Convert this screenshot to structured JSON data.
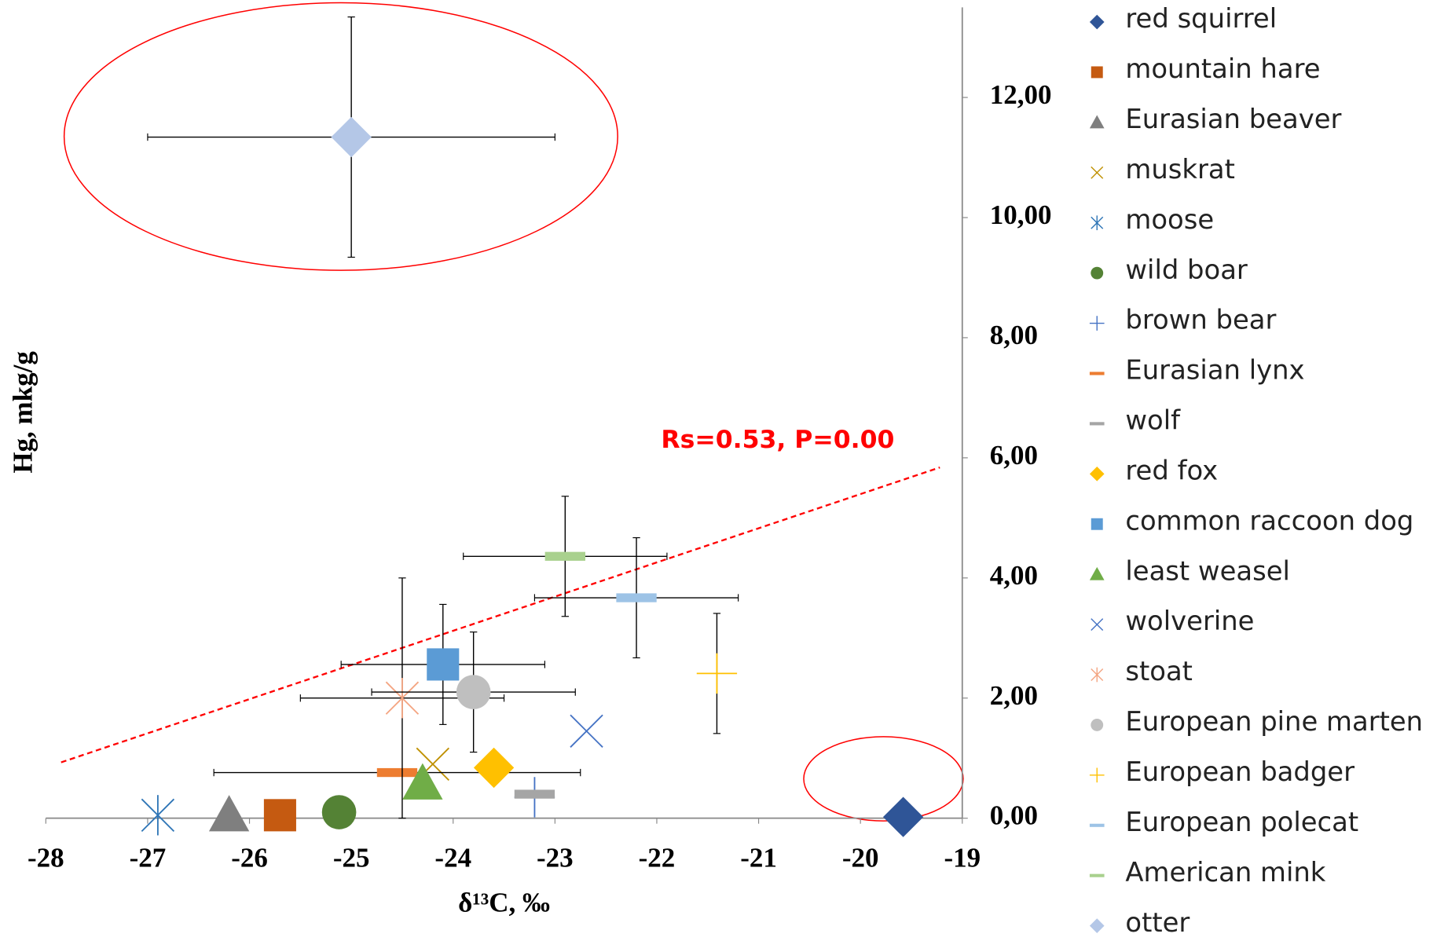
{
  "chart_data": {
    "type": "scatter",
    "xlabel": "δ¹³C, ‰",
    "ylabel": "Hg, mkg/g",
    "annotation": "Rs=0.53, P=0.00",
    "xlim": [
      -28,
      -19
    ],
    "ylim": [
      0,
      13.5
    ],
    "xticks": [
      -28,
      -27,
      -26,
      -25,
      -24,
      -23,
      -22,
      -21,
      -20,
      -19
    ],
    "yticks": [
      {
        "value": 0,
        "label": "0,00"
      },
      {
        "value": 2,
        "label": "2,00"
      },
      {
        "value": 4,
        "label": "4,00"
      },
      {
        "value": 6,
        "label": "6,00"
      },
      {
        "value": 8,
        "label": "8,00"
      },
      {
        "value": 10,
        "label": "10,00"
      },
      {
        "value": 12,
        "label": "12,00"
      }
    ],
    "trendline": {
      "color": "#ff0000",
      "x": [
        -27.85,
        -19.22
      ],
      "y": [
        0.93,
        5.84
      ]
    },
    "series": [
      {
        "name": "red squirrel",
        "color": "#2f5597",
        "marker": "diamond",
        "x": [
          -19.58
        ],
        "y": [
          0.02
        ]
      },
      {
        "name": "mountain hare",
        "color": "#c55a11",
        "marker": "square",
        "x": [
          -25.7
        ],
        "y": [
          0.05
        ]
      },
      {
        "name": "Eurasian beaver",
        "color": "#7f7f7f",
        "marker": "triangle",
        "x": [
          -26.2
        ],
        "y": [
          0.05
        ]
      },
      {
        "name": "muskrat",
        "color": "#bf9000",
        "marker": "x",
        "x": [
          -24.2
        ],
        "y": [
          0.9
        ]
      },
      {
        "name": "moose",
        "color": "#2e75b6",
        "marker": "star",
        "x": [
          -26.9
        ],
        "y": [
          0.05
        ]
      },
      {
        "name": "wild boar",
        "color": "#548235",
        "marker": "circle",
        "x": [
          -25.12
        ],
        "y": [
          0.1
        ]
      },
      {
        "name": "brown bear",
        "color": "#4472c4",
        "marker": "plus",
        "x": [
          -23.2
        ],
        "y": [
          0.35
        ]
      },
      {
        "name": "Eurasian lynx",
        "color": "#ed7d31",
        "marker": "dash",
        "x": [
          -24.55
        ],
        "y": [
          0.76
        ],
        "xerr": [
          1.8
        ]
      },
      {
        "name": "wolf",
        "color": "#a5a5a5",
        "marker": "dash",
        "x": [
          -23.2
        ],
        "y": [
          0.4
        ]
      },
      {
        "name": "red fox",
        "color": "#ffc000",
        "marker": "diamond",
        "x": [
          -23.6
        ],
        "y": [
          0.84
        ]
      },
      {
        "name": "common raccoon dog",
        "color": "#5b9bd5",
        "marker": "square",
        "x": [
          -24.1
        ],
        "y": [
          2.56
        ],
        "xerr": [
          1
        ],
        "yerr": [
          1
        ]
      },
      {
        "name": "least weasel",
        "color": "#70ad47",
        "marker": "triangle",
        "x": [
          -24.3
        ],
        "y": [
          0.58
        ]
      },
      {
        "name": "wolverine",
        "color": "#4472c4",
        "marker": "x",
        "x": [
          -22.69
        ],
        "y": [
          1.45
        ]
      },
      {
        "name": "stoat",
        "color": "#f4a582",
        "marker": "star",
        "x": [
          -24.5
        ],
        "y": [
          2.0
        ],
        "xerr": [
          1
        ],
        "yerr": [
          2
        ]
      },
      {
        "name": "European pine marten",
        "color": "#bfbfbf",
        "marker": "circle",
        "x": [
          -23.8
        ],
        "y": [
          2.1
        ],
        "xerr": [
          1
        ],
        "yerr": [
          1
        ]
      },
      {
        "name": "European badger",
        "color": "#ffc000",
        "marker": "plus",
        "x": [
          -21.41
        ],
        "y": [
          2.41
        ],
        "yerr": [
          1
        ]
      },
      {
        "name": "European polecat",
        "color": "#9dc3e6",
        "marker": "dash",
        "x": [
          -22.2
        ],
        "y": [
          3.67
        ],
        "xerr": [
          1
        ],
        "yerr": [
          1
        ]
      },
      {
        "name": "American mink",
        "color": "#a9d18e",
        "marker": "dash",
        "x": [
          -22.9
        ],
        "y": [
          4.36
        ],
        "xerr": [
          1
        ],
        "yerr": [
          1
        ]
      },
      {
        "name": "otter",
        "color": "#b4c7e7",
        "marker": "diamond",
        "x": [
          -25.0
        ],
        "y": [
          11.34
        ],
        "xerr": [
          2
        ],
        "yerr": [
          2
        ]
      }
    ]
  }
}
